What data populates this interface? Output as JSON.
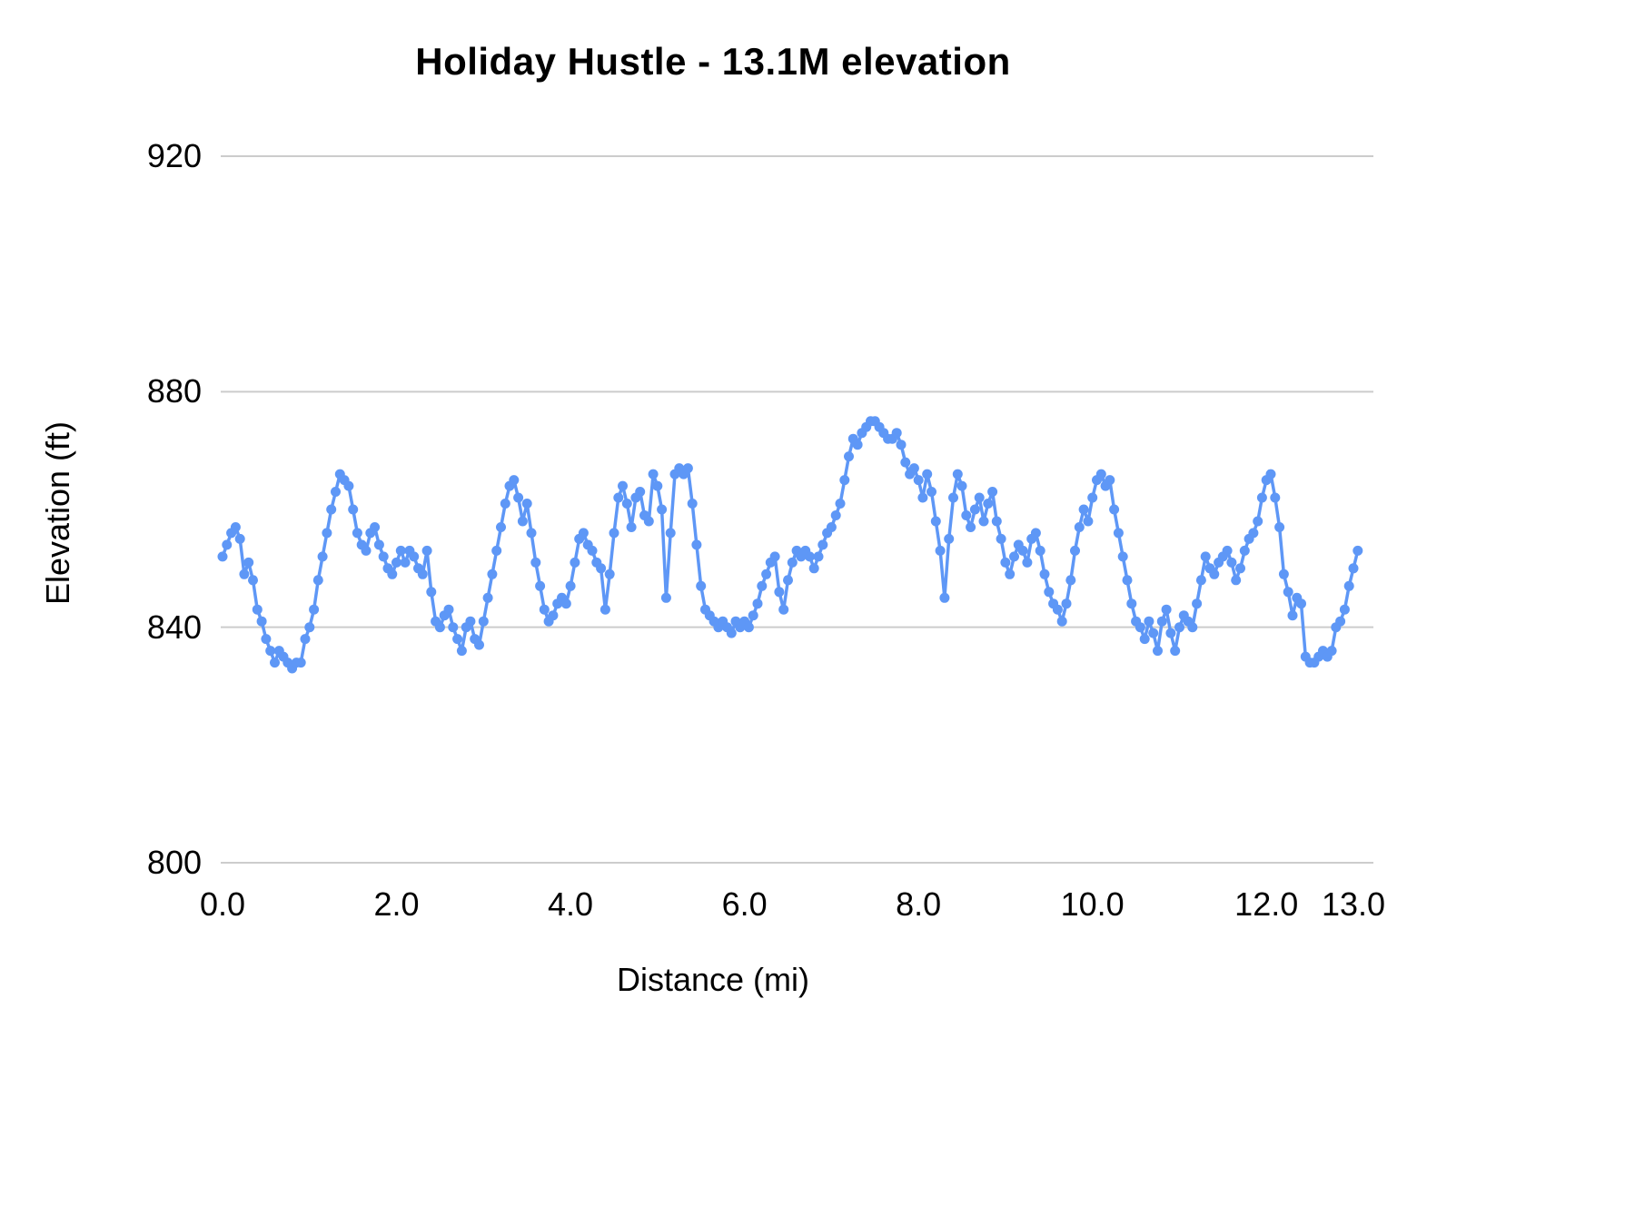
{
  "chart_data": {
    "type": "line",
    "title": "Holiday Hustle - 13.1M elevation",
    "xlabel": "Distance (mi)",
    "ylabel": "Elevation (ft)",
    "xlim": [
      0,
      13.1
    ],
    "ylim": [
      800,
      920
    ],
    "grid": "horizontal",
    "legend": "none",
    "line_color": "#5e97f6",
    "grid_color": "#cccccc",
    "yticks": [
      {
        "value": 800,
        "label": "800"
      },
      {
        "value": 840,
        "label": "840"
      },
      {
        "value": 880,
        "label": "880"
      },
      {
        "value": 920,
        "label": "920"
      }
    ],
    "xticks": [
      {
        "value": 0,
        "label": "0.0"
      },
      {
        "value": 2,
        "label": "2.0"
      },
      {
        "value": 4,
        "label": "4.0"
      },
      {
        "value": 6,
        "label": "6.0"
      },
      {
        "value": 8,
        "label": "8.0"
      },
      {
        "value": 10,
        "label": "10.0"
      },
      {
        "value": 12,
        "label": "12.0"
      },
      {
        "value": 13,
        "label": "13.0"
      }
    ],
    "series": [
      {
        "name": "Elevation",
        "x_start": 0.0,
        "x_step": 0.05,
        "values": [
          852,
          854,
          856,
          857,
          855,
          849,
          851,
          848,
          843,
          841,
          838,
          836,
          834,
          836,
          835,
          834,
          833,
          834,
          834,
          838,
          840,
          843,
          848,
          852,
          856,
          860,
          863,
          866,
          865,
          864,
          860,
          856,
          854,
          853,
          856,
          857,
          854,
          852,
          850,
          849,
          851,
          853,
          851,
          853,
          852,
          850,
          849,
          853,
          846,
          841,
          840,
          842,
          843,
          840,
          838,
          836,
          840,
          841,
          838,
          837,
          841,
          845,
          849,
          853,
          857,
          861,
          864,
          865,
          862,
          858,
          861,
          856,
          851,
          847,
          843,
          841,
          842,
          844,
          845,
          844,
          847,
          851,
          855,
          856,
          854,
          853,
          851,
          850,
          843,
          849,
          856,
          862,
          864,
          861,
          857,
          862,
          863,
          859,
          858,
          866,
          864,
          860,
          845,
          856,
          866,
          867,
          866,
          867,
          861,
          854,
          847,
          843,
          842,
          841,
          840,
          841,
          840,
          839,
          841,
          840,
          841,
          840,
          842,
          844,
          847,
          849,
          851,
          852,
          846,
          843,
          848,
          851,
          853,
          852,
          853,
          852,
          850,
          852,
          854,
          856,
          857,
          859,
          861,
          865,
          869,
          872,
          871,
          873,
          874,
          875,
          875,
          874,
          873,
          872,
          872,
          873,
          871,
          868,
          866,
          867,
          865,
          862,
          866,
          863,
          858,
          853,
          845,
          855,
          862,
          866,
          864,
          859,
          857,
          860,
          862,
          858,
          861,
          863,
          858,
          855,
          851,
          849,
          852,
          854,
          853,
          851,
          855,
          856,
          853,
          849,
          846,
          844,
          843,
          841,
          844,
          848,
          853,
          857,
          860,
          858,
          862,
          865,
          866,
          864,
          865,
          860,
          856,
          852,
          848,
          844,
          841,
          840,
          838,
          841,
          839,
          836,
          841,
          843,
          839,
          836,
          840,
          842,
          841,
          840,
          844,
          848,
          852,
          850,
          849,
          851,
          852,
          853,
          851,
          848,
          850,
          853,
          855,
          856,
          858,
          862,
          865,
          866,
          862,
          857,
          849,
          846,
          842,
          845,
          844,
          835,
          834,
          834,
          835,
          836,
          835,
          836,
          840,
          841,
          843,
          847,
          850,
          853
        ]
      }
    ]
  }
}
